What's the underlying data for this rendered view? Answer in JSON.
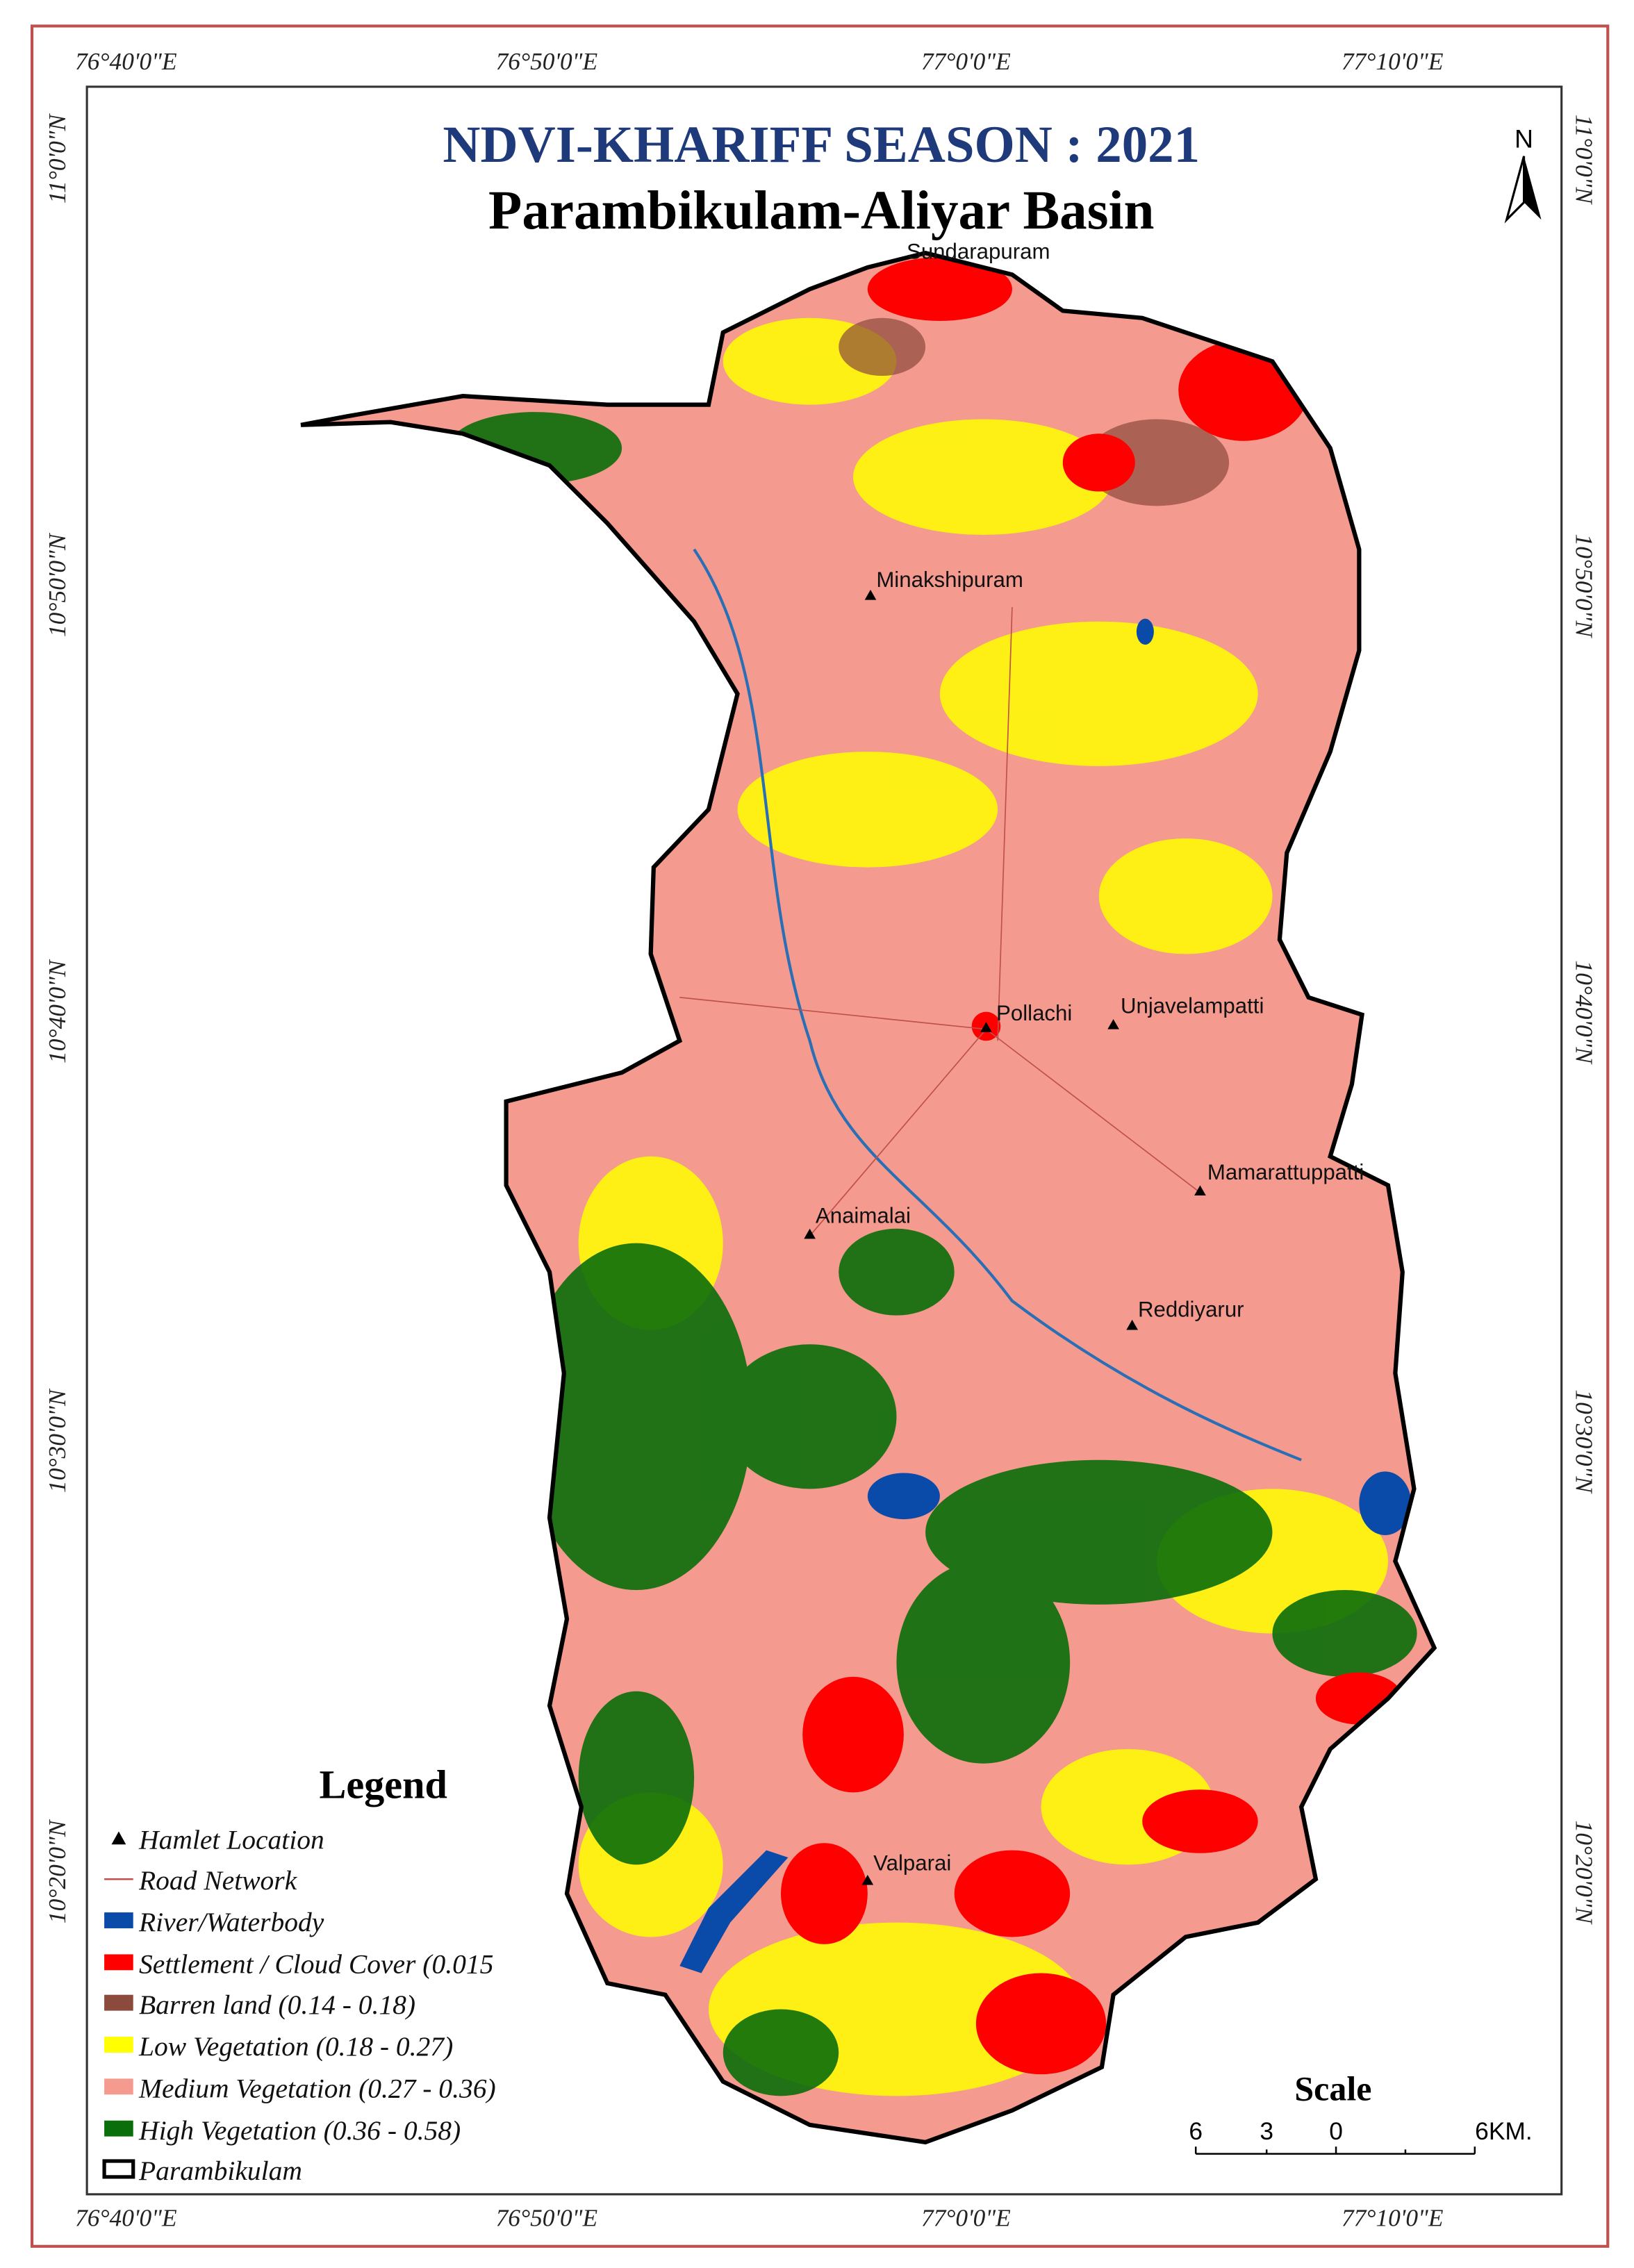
{
  "map": {
    "title": "NDVI-KHARIFF SEASON : 2021",
    "subtitle": "Parambikulam-Aliyar Basin",
    "north": "N",
    "top_labels": [
      "76°40'0\"E",
      "76°50'0\"E",
      "77°0'0\"E",
      "77°10'0\"E"
    ],
    "bottom_labels": [
      "76°40'0\"E",
      "76°50'0\"E",
      "77°0'0\"E",
      "77°10'0\"E"
    ],
    "left_labels": [
      "11°0'0\"N",
      "10°50'0\"N",
      "10°40'0\"N",
      "10°30'0\"N",
      "10°20'0\"N"
    ],
    "right_labels": [
      "11°0'0\"N",
      "10°50'0\"N",
      "10°40'0\"N",
      "10°30'0\"N",
      "10°20'0\"N"
    ],
    "hamlets": [
      "Sundarapuram",
      "Minakshipuram",
      "Pollachi",
      "Unjavelampatti",
      "Mamarattuppatti",
      "Anaimalai",
      "Reddiyarur",
      "Valparai"
    ],
    "legend": {
      "title": "Legend",
      "items": [
        "Hamlet Location",
        "Road Network",
        "River/Waterbody",
        "Settlement / Cloud Cover (0.015",
        "Barren land (0.14 - 0.18)",
        "Low Vegetation (0.18 - 0.27)",
        "Medium Vegetation (0.27 - 0.36)",
        "High Vegetation (0.36 - 0.58)",
        "Parambikulam"
      ]
    },
    "scale": {
      "title": "Scale",
      "labels": [
        "6",
        "3",
        "0",
        "6KM."
      ]
    }
  }
}
